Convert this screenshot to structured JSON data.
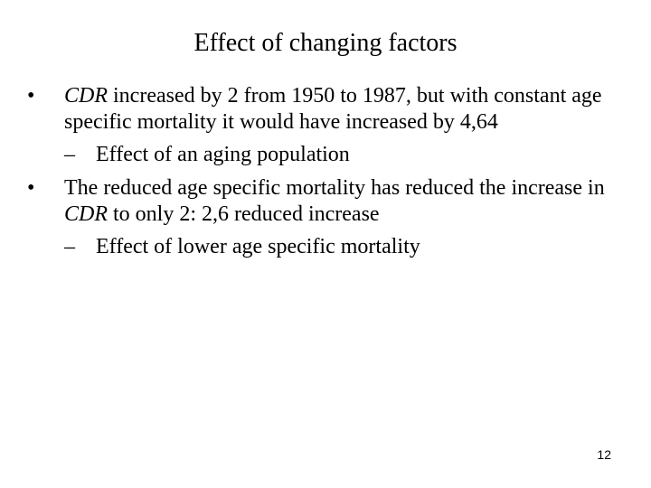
{
  "slide": {
    "title": "Effect of changing factors",
    "bullet_marker": "•",
    "sub_marker": "–",
    "bullets": [
      {
        "italic_term": "CDR",
        "text_rest": " increased by 2 from 1950 to 1987, but with constant age specific mortality it would have increased by 4,64",
        "sub": "Effect of an aging population"
      },
      {
        "text_before": "The reduced age specific mortality has reduced the increase in ",
        "italic_term": "CDR",
        "text_after": " to only 2: 2,6 reduced increase",
        "sub": "Effect of lower age specific mortality"
      }
    ],
    "page_number": "12"
  }
}
